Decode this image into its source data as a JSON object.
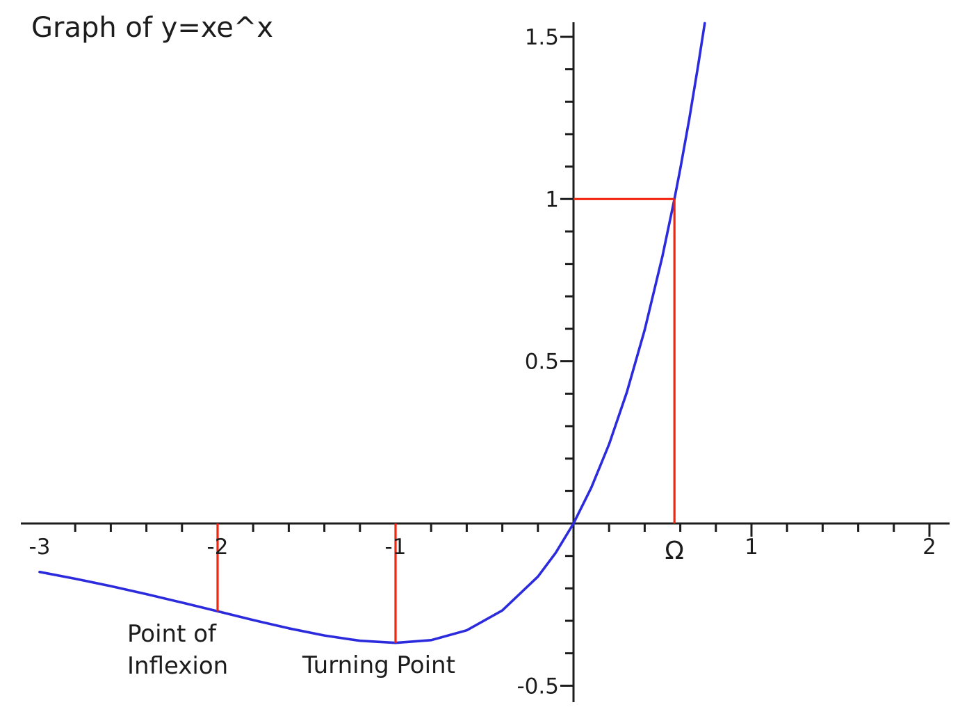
{
  "title": "Graph of y=xe^x",
  "colors": {
    "curve": "#2b2bdd",
    "marker": "#f2250f",
    "axis": "#1c1c1c",
    "text": "#1c1c1c",
    "background": "#ffffff"
  },
  "chart_data": {
    "type": "line",
    "title": "Graph of y=xe^x",
    "function": "y = x*e^x",
    "xlabel": "",
    "ylabel": "",
    "xlim": [
      -3.1,
      2.11
    ],
    "ylim": [
      -0.55,
      1.55
    ],
    "grid": false,
    "legend": "none",
    "x_axis": {
      "minor_tick_step": 0.2,
      "major_ticks": [
        -3,
        -2,
        -1,
        1,
        2
      ],
      "tick_labels": [
        {
          "value": -3,
          "label": "-3"
        },
        {
          "value": -2,
          "label": "-2"
        },
        {
          "value": -1,
          "label": "-1"
        },
        {
          "value": 0.567143,
          "label": "Ω"
        },
        {
          "value": 1,
          "label": "1"
        },
        {
          "value": 2,
          "label": "2"
        }
      ]
    },
    "y_axis": {
      "minor_tick_step": 0.1,
      "major_ticks": [
        -0.5,
        0.5,
        1,
        1.5
      ],
      "tick_labels": [
        {
          "value": 1.5,
          "label": "1.5"
        },
        {
          "value": 1,
          "label": "1"
        },
        {
          "value": 0.5,
          "label": "0.5"
        },
        {
          "value": -0.5,
          "label": "-0.5"
        }
      ]
    },
    "series": [
      {
        "name": "y = xe^x",
        "color": "#2b2bdd",
        "points": [
          [
            -3.0,
            -0.14936
          ],
          [
            -2.8,
            -0.17027
          ],
          [
            -2.6,
            -0.19311
          ],
          [
            -2.4,
            -0.21772
          ],
          [
            -2.2,
            -0.24377
          ],
          [
            -2.0,
            -0.27067
          ],
          [
            -1.8,
            -0.29754
          ],
          [
            -1.6,
            -0.32303
          ],
          [
            -1.4,
            -0.34524
          ],
          [
            -1.2,
            -0.36143
          ],
          [
            -1.0,
            -0.36788
          ],
          [
            -0.8,
            -0.35946
          ],
          [
            -0.6,
            -0.32929
          ],
          [
            -0.4,
            -0.26813
          ],
          [
            -0.2,
            -0.16375
          ],
          [
            -0.1,
            -0.09048
          ],
          [
            0.0,
            0.0
          ],
          [
            0.1,
            0.11052
          ],
          [
            0.2,
            0.24428
          ],
          [
            0.3,
            0.40496
          ],
          [
            0.4,
            0.59673
          ],
          [
            0.5,
            0.82436
          ],
          [
            0.567143,
            1.0
          ],
          [
            0.6,
            1.09327
          ],
          [
            0.65,
            1.2451
          ],
          [
            0.7,
            1.41063
          ],
          [
            0.7375,
            1.54191
          ]
        ]
      }
    ],
    "marker_lines": [
      {
        "name": "inflexion-drop-line",
        "color": "#f2250f",
        "x1": -2,
        "y1": 0,
        "x2": -2,
        "y2": -0.27067
      },
      {
        "name": "turning-drop-line",
        "color": "#f2250f",
        "x1": -1,
        "y1": 0,
        "x2": -1,
        "y2": -0.36788
      },
      {
        "name": "y-equals-1-line",
        "color": "#f2250f",
        "x1": 0,
        "y1": 1,
        "x2": 0.567143,
        "y2": 1
      },
      {
        "name": "omega-drop-line",
        "color": "#f2250f",
        "x1": 0.567143,
        "y1": 1,
        "x2": 0.567143,
        "y2": 0
      }
    ],
    "annotations": [
      {
        "id": "inflexion",
        "lines": [
          "Point of",
          "Inflexion"
        ],
        "point": {
          "x": -2,
          "y": -0.27067
        }
      },
      {
        "id": "turning",
        "lines": [
          "Turning Point"
        ],
        "point": {
          "x": -1,
          "y": -0.36788
        }
      }
    ]
  }
}
